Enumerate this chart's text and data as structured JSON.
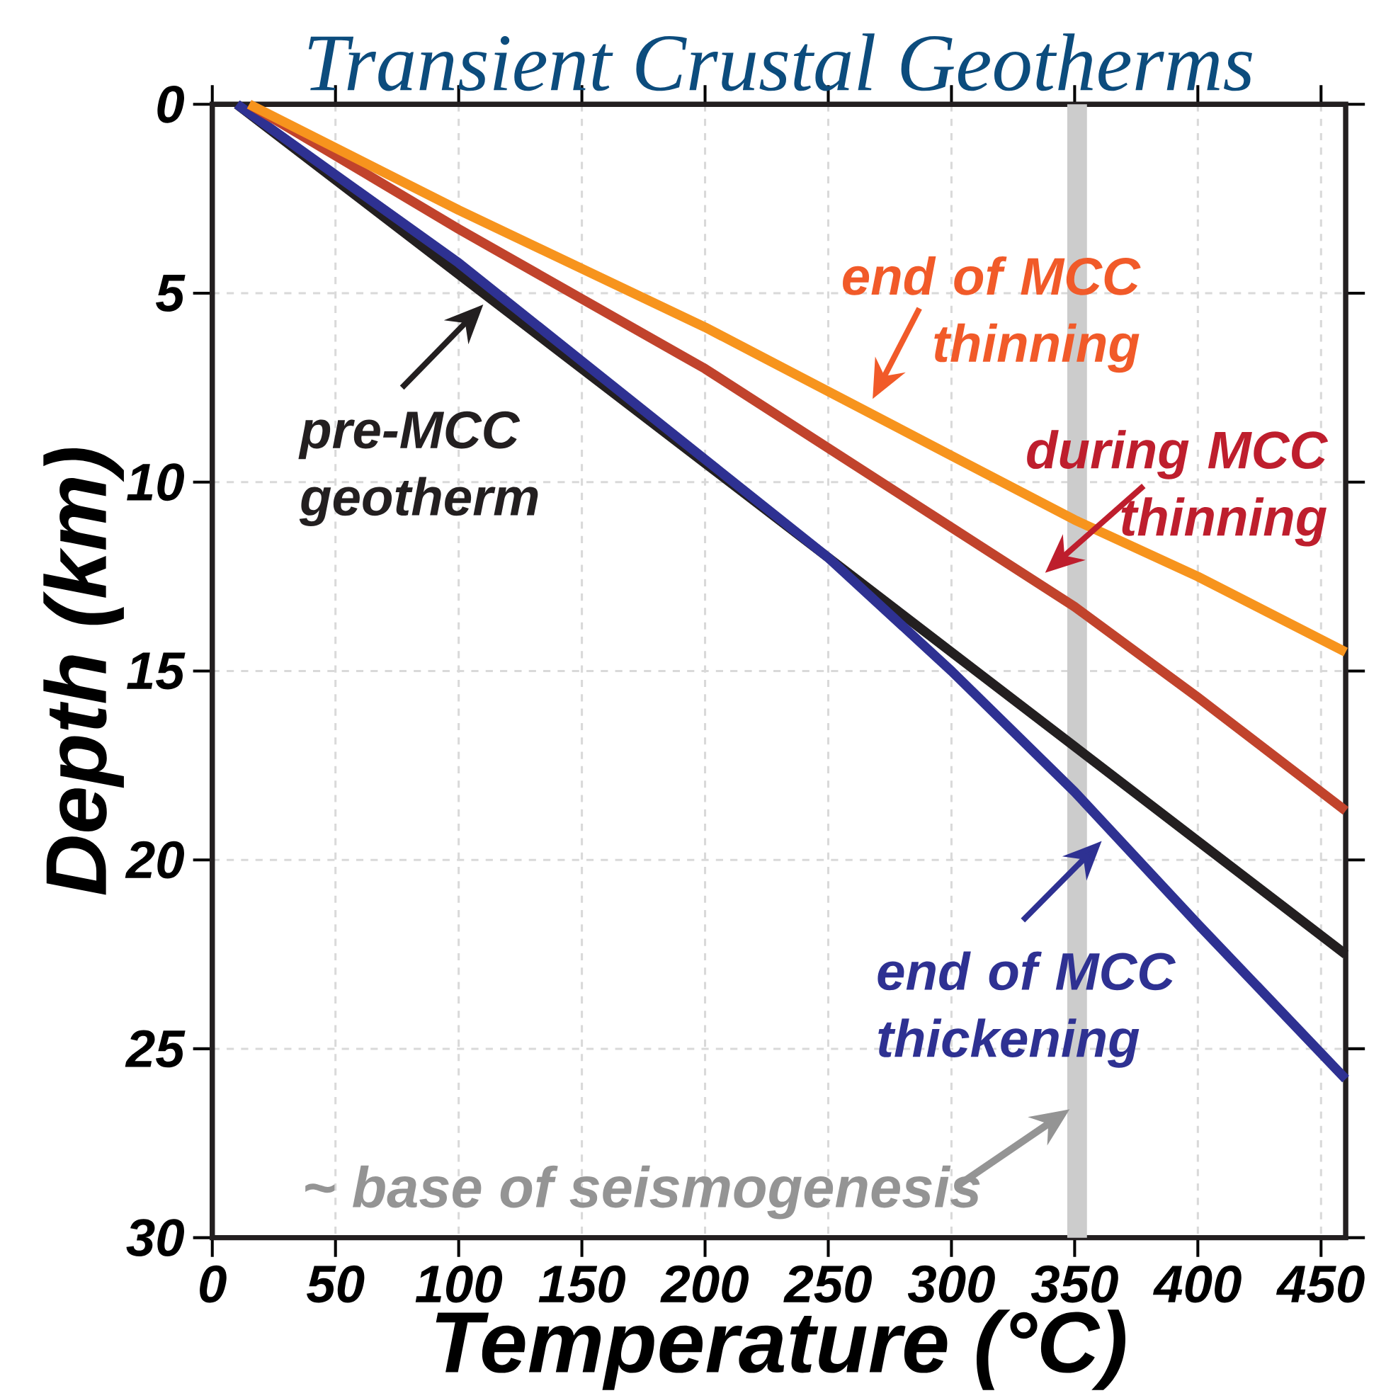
{
  "chart_data": {
    "type": "line",
    "title": "Transient Crustal Geotherms",
    "xlabel": "Temperature (°C)",
    "ylabel": "Depth (km)",
    "xlim": [
      0,
      460
    ],
    "ylim": [
      30,
      0
    ],
    "xticks": [
      0,
      50,
      100,
      150,
      200,
      250,
      300,
      350,
      400,
      450
    ],
    "yticks": [
      0,
      5,
      10,
      15,
      20,
      25,
      30
    ],
    "grid": true,
    "legend": "center",
    "line_style": "solid",
    "marker": "none",
    "series": [
      {
        "name": "pre-MCC geotherm",
        "color": "#231f20",
        "x": [
          10,
          100,
          200,
          250,
          300,
          350,
          400,
          460
        ],
        "values": [
          0,
          4.5,
          9.5,
          12.0,
          14.5,
          17.0,
          19.5,
          22.5
        ]
      },
      {
        "name": "end of MCC thickening",
        "color": "#2e3192",
        "x": [
          10,
          100,
          200,
          250,
          300,
          350,
          400,
          460
        ],
        "values": [
          0,
          4.2,
          9.4,
          12.0,
          15.0,
          18.2,
          21.7,
          25.8
        ]
      },
      {
        "name": "during MCC thinning",
        "color": "#c1432c",
        "x": [
          15,
          100,
          200,
          250,
          300,
          350,
          400,
          460
        ],
        "values": [
          0,
          3.3,
          7.0,
          9.1,
          11.2,
          13.3,
          15.7,
          18.7
        ]
      },
      {
        "name": "end of MCC thinning",
        "color": "#f7941d",
        "x": [
          15,
          100,
          200,
          250,
          300,
          350,
          400,
          460
        ],
        "values": [
          0,
          2.8,
          5.9,
          7.6,
          9.3,
          11.0,
          12.5,
          14.5
        ]
      }
    ],
    "bands": [
      {
        "axis": "x",
        "from": 347,
        "to": 355,
        "label": "~ base of seismogenesis",
        "color": "#cccccc"
      }
    ]
  }
}
